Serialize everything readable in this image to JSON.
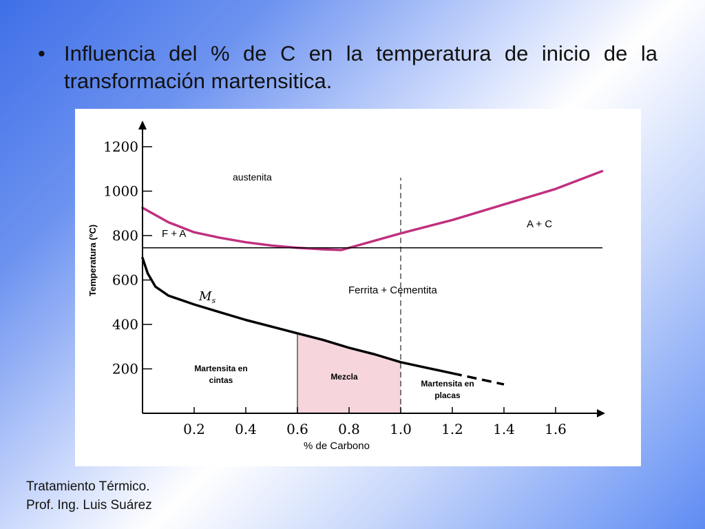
{
  "slide": {
    "bullet": "•",
    "title": "Influencia del % de C en la temperatura de inicio de la transformación martensitica.",
    "footer_line1": "Tratamiento Térmico.",
    "footer_line2": "Prof. Ing. Luis Suárez"
  },
  "chart_data": {
    "type": "line",
    "title": "",
    "xlabel": "% de Carbono",
    "ylabel": "Temperatura (ºC)",
    "xlim": [
      0,
      1.8
    ],
    "ylim": [
      0,
      1300
    ],
    "x_ticks": [
      0.2,
      0.4,
      0.6,
      0.8,
      1.0,
      1.2,
      1.4,
      1.6
    ],
    "x_tick_labels": [
      "0.2",
      "0.4",
      "0.6",
      "0.8",
      "1.0",
      "1.2",
      "1.4",
      "1.6"
    ],
    "y_ticks": [
      200,
      400,
      600,
      800,
      1000,
      1200
    ],
    "y_tick_labels": [
      "200",
      "400",
      "600",
      "800",
      "1000",
      "1200"
    ],
    "grid": false,
    "colors": {
      "upper_critical": "#c0307e",
      "ms": "#000000",
      "eutectoid": "#000000",
      "mezcla_fill": "#f6d5dc"
    },
    "series": [
      {
        "key": "upper_critical",
        "values": [
          [
            0,
            925
          ],
          [
            0.1,
            860
          ],
          [
            0.2,
            815
          ],
          [
            0.3,
            790
          ],
          [
            0.4,
            770
          ],
          [
            0.5,
            755
          ],
          [
            0.6,
            745
          ],
          [
            0.7,
            738
          ],
          [
            0.77,
            735
          ],
          [
            1.0,
            810
          ],
          [
            1.2,
            870
          ],
          [
            1.4,
            940
          ],
          [
            1.6,
            1010
          ],
          [
            1.78,
            1090
          ]
        ]
      },
      {
        "key": "eutectoid",
        "values": [
          [
            0,
            745
          ],
          [
            1.78,
            745
          ]
        ]
      },
      {
        "key": "ms",
        "name": "Ms",
        "values": [
          [
            0,
            700
          ],
          [
            0.02,
            630
          ],
          [
            0.05,
            570
          ],
          [
            0.1,
            530
          ],
          [
            0.2,
            490
          ],
          [
            0.3,
            455
          ],
          [
            0.4,
            420
          ],
          [
            0.5,
            390
          ],
          [
            0.6,
            360
          ],
          [
            0.7,
            330
          ],
          [
            0.8,
            295
          ],
          [
            0.9,
            265
          ],
          [
            1.0,
            230
          ],
          [
            1.1,
            205
          ],
          [
            1.2,
            180
          ]
        ]
      },
      {
        "key": "ms_dashed",
        "values": [
          [
            1.2,
            180
          ],
          [
            1.3,
            155
          ],
          [
            1.4,
            130
          ]
        ]
      }
    ],
    "vertical_line": {
      "x": 1.0,
      "style": "dashed"
    },
    "mezcla_region": {
      "x0": 0.6,
      "x1": 1.0
    },
    "region_labels": {
      "austenita": "austenita",
      "fa": "F + A",
      "ac": "A + C",
      "fc": "Ferrita + Cementita",
      "ms": "M",
      "ms_sub": "s",
      "cintas1": "Martensita en",
      "cintas2": "cintas",
      "mezcla": "Mezcla",
      "placas1": "Martensita en",
      "placas2": "placas"
    }
  }
}
